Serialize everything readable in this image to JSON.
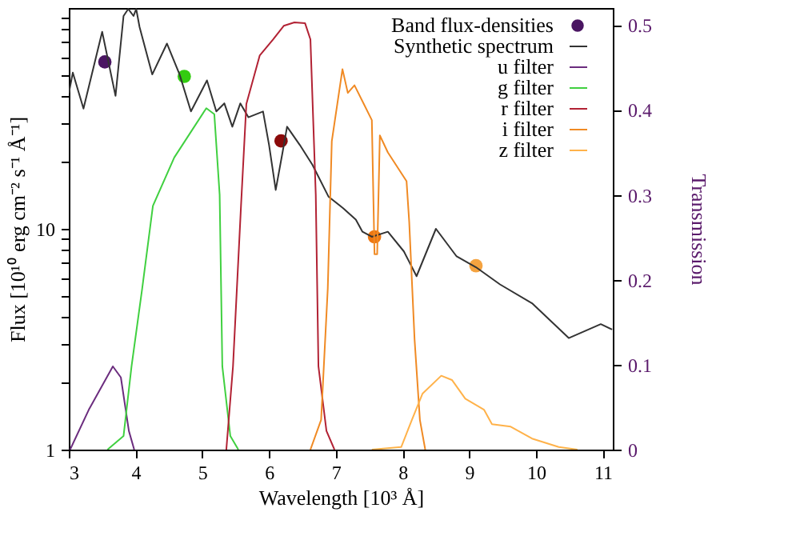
{
  "chart_data": {
    "type": "line",
    "xlabel": "Wavelength [10³ Å]",
    "ylabel": "Flux [10¹⁰ erg cm⁻² s⁻¹ Å⁻¹]",
    "y2label": "Transmission",
    "log": "y",
    "xlim": [
      3,
      11.15
    ],
    "xticks": [
      3,
      4,
      5,
      6,
      7,
      8,
      9,
      10,
      11
    ],
    "ylim": [
      1,
      100
    ],
    "yticks": [
      1,
      {
        "value": 2,
        "label": null
      },
      {
        "value": 3,
        "label": null
      },
      {
        "value": 4,
        "label": null
      },
      {
        "value": 5,
        "label": null
      },
      {
        "value": 6,
        "label": null
      },
      {
        "value": 7,
        "label": null
      },
      {
        "value": 8,
        "label": null
      },
      {
        "value": 9,
        "label": null
      },
      10,
      {
        "value": 20,
        "label": null
      },
      {
        "value": 30,
        "label": null
      },
      {
        "value": 40,
        "label": null
      },
      {
        "value": 50,
        "label": null
      },
      {
        "value": 60,
        "label": null
      },
      {
        "value": 70,
        "label": null
      },
      {
        "value": 80,
        "label": null
      },
      {
        "value": 90,
        "label": null
      }
    ],
    "y2lim": [
      0,
      0.52
    ],
    "y2ticks": [
      0,
      0.1,
      0.2,
      0.3,
      0.4,
      0.5
    ],
    "grid": false,
    "legend": "top right",
    "series": [
      {
        "name": "Band flux-densities",
        "type": "scatter",
        "marker": "circle",
        "colors": [
          "#4a1562",
          "#33cc11",
          "#8b0a0a",
          "#ee7711",
          "#f5a340"
        ],
        "x": [
          3.54,
          4.73,
          6.18,
          7.58,
          9.1
        ],
        "values": [
          57,
          49,
          25,
          9.2,
          6.8
        ]
      },
      {
        "name": "Synthetic spectrum",
        "color": "#333333",
        "x": [
          3.0,
          3.06,
          3.22,
          3.5,
          3.7,
          3.82,
          3.89,
          3.97,
          4.01,
          4.06,
          4.25,
          4.47,
          4.66,
          4.83,
          5.07,
          5.21,
          5.33,
          5.45,
          5.57,
          5.69,
          5.91,
          6.0,
          6.1,
          6.2,
          6.27,
          6.46,
          6.65,
          6.89,
          7.11,
          7.3,
          7.4,
          7.54,
          7.78,
          8.02,
          8.21,
          8.5,
          8.81,
          9.1,
          9.46,
          9.94,
          10.49,
          10.97,
          11.14
        ],
        "values": [
          41,
          51,
          35,
          78,
          40,
          92,
          99,
          92,
          99,
          82,
          50,
          69,
          50,
          34,
          47,
          34,
          37,
          29,
          37,
          32,
          34,
          24,
          15,
          22,
          29,
          24,
          19.5,
          14,
          12.4,
          11,
          9.7,
          9.2,
          9.7,
          7.9,
          6.1,
          10,
          7.5,
          6.7,
          5.6,
          4.6,
          3.2,
          3.7,
          3.5
        ]
      },
      {
        "name": "u filter",
        "type": "line",
        "axis": "y2",
        "color": "#6b2c7e",
        "x": [
          3.02,
          3.3,
          3.66,
          3.78,
          3.9,
          3.98
        ],
        "values": [
          0,
          0.047,
          0.098,
          0.085,
          0.022,
          0
        ]
      },
      {
        "name": "g filter",
        "type": "line",
        "axis": "y2",
        "color": "#40d040",
        "x": [
          3.58,
          3.82,
          3.94,
          4.1,
          4.26,
          4.58,
          5.06,
          5.18,
          5.26,
          5.3,
          5.42,
          5.54
        ],
        "values": [
          0,
          0.016,
          0.098,
          0.19,
          0.287,
          0.344,
          0.402,
          0.395,
          0.3,
          0.098,
          0.016,
          0
        ]
      },
      {
        "name": "r filter",
        "type": "line",
        "axis": "y2",
        "color": "#b22234",
        "x": [
          5.36,
          5.46,
          5.58,
          5.66,
          5.86,
          6.06,
          6.22,
          6.38,
          6.54,
          6.62,
          6.7,
          6.74,
          6.86,
          6.98
        ],
        "values": [
          0,
          0.098,
          0.287,
          0.407,
          0.464,
          0.483,
          0.499,
          0.503,
          0.502,
          0.483,
          0.3,
          0.098,
          0.022,
          0
        ]
      },
      {
        "name": "i filter",
        "type": "line",
        "axis": "y2",
        "color": "#f08a24",
        "x": [
          6.62,
          6.78,
          6.88,
          6.94,
          7.1,
          7.18,
          7.28,
          7.42,
          7.54,
          7.58,
          7.62,
          7.66,
          7.78,
          8.06,
          8.1,
          8.18,
          8.26,
          8.34
        ],
        "values": [
          0,
          0.035,
          0.19,
          0.363,
          0.448,
          0.42,
          0.429,
          0.407,
          0.388,
          0.23,
          0.23,
          0.37,
          0.35,
          0.316,
          0.268,
          0.13,
          0.035,
          0
        ]
      },
      {
        "name": "z filter",
        "type": "line",
        "axis": "y2",
        "color": "#ffb24a",
        "x": [
          7.54,
          7.98,
          8.14,
          8.3,
          8.58,
          8.74,
          8.94,
          9.22,
          9.34,
          9.62,
          9.94,
          10.34,
          10.62
        ],
        "values": [
          0,
          0.003,
          0.035,
          0.066,
          0.087,
          0.082,
          0.06,
          0.047,
          0.03,
          0.027,
          0.013,
          0.003,
          0
        ]
      }
    ]
  }
}
